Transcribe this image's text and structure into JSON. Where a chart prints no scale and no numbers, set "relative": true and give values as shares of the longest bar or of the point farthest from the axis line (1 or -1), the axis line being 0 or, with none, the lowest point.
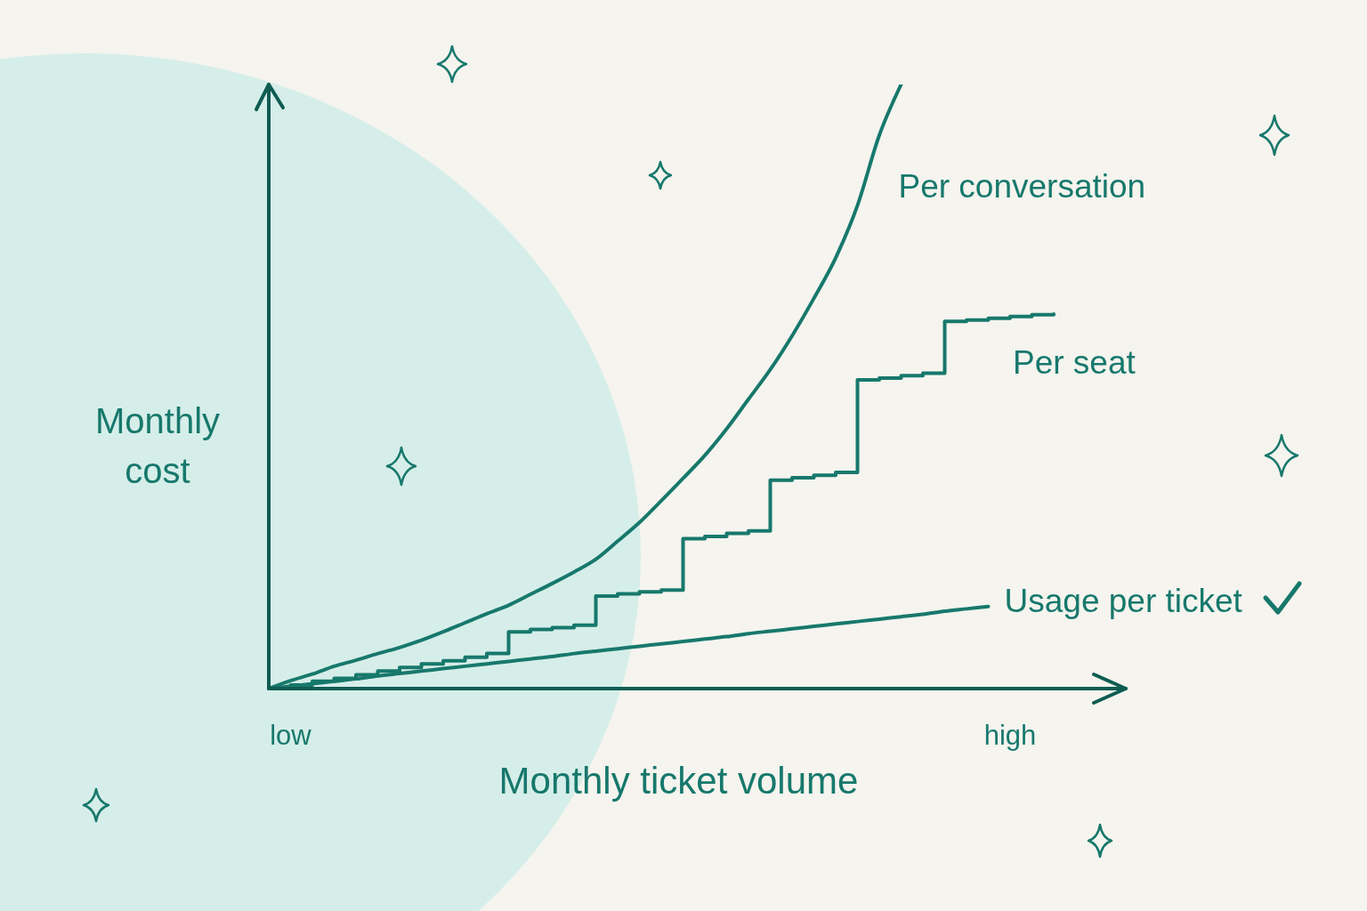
{
  "chart_data": {
    "type": "line",
    "xlabel": "Monthly ticket volume",
    "ylabel": "Monthly cost",
    "relative": true,
    "categories": [
      null,
      "low",
      null,
      null,
      null,
      null,
      null,
      null,
      null,
      null,
      null,
      null,
      null,
      null,
      null,
      null,
      null,
      null,
      null,
      null,
      null,
      null,
      null,
      null,
      null,
      null,
      null,
      null,
      null,
      null,
      null,
      null,
      null,
      null,
      "high",
      null,
      null,
      null,
      null,
      null
    ],
    "marker": "none",
    "line_style": "solid",
    "series": [
      {
        "name": "Per conversation",
        "color": "#17786c",
        "values": [
          0,
          0.013,
          0.024,
          0.037,
          0.047,
          0.058,
          0.068,
          0.08,
          0.094,
          0.109,
          0.124,
          0.138,
          0.156,
          0.174,
          0.193,
          0.214,
          0.244,
          0.275,
          0.311,
          0.348,
          0.386,
          0.43,
          0.479,
          0.528,
          0.584,
          0.646,
          0.713,
          0.8,
          0.916,
          1,
          null,
          null,
          null,
          null,
          null,
          null,
          null,
          null,
          null,
          null
        ]
      },
      {
        "name": "Per seat",
        "type": "step",
        "color": "#17786c",
        "values": [
          0,
          0.006,
          0.012,
          0.017,
          0.023,
          0.029,
          0.035,
          0.041,
          0.046,
          0.052,
          0.058,
          0.094,
          0.098,
          0.101,
          0.105,
          0.153,
          0.157,
          0.16,
          0.163,
          0.248,
          0.252,
          0.257,
          0.261,
          0.345,
          0.349,
          0.353,
          0.358,
          0.511,
          0.514,
          0.518,
          0.522,
          0.608,
          0.61,
          0.613,
          0.616,
          0.619,
          0.62,
          null,
          null,
          null
        ]
      },
      {
        "name": "Usage per ticket",
        "color": "#17786c",
        "values": [
          0,
          0.004,
          0.008,
          0.012,
          0.016,
          0.021,
          0.025,
          0.029,
          0.033,
          0.037,
          0.041,
          0.045,
          0.049,
          0.053,
          0.058,
          0.062,
          0.066,
          0.07,
          0.074,
          0.078,
          0.082,
          0.086,
          0.091,
          0.095,
          0.099,
          0.103,
          0.107,
          0.111,
          0.115,
          0.119,
          0.123,
          0.128,
          0.132,
          0.136,
          null,
          null,
          null,
          null,
          null,
          null
        ]
      }
    ]
  }
}
